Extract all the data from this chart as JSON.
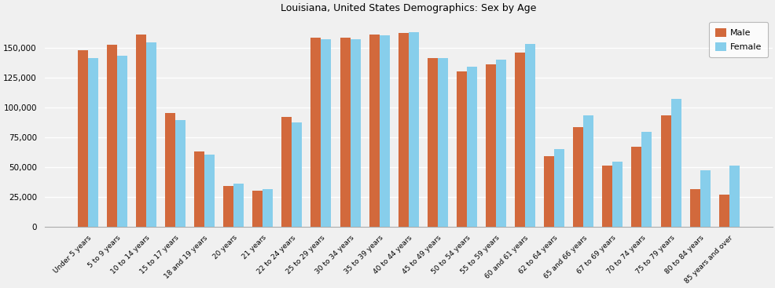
{
  "title": "Louisiana, United States Demographics: Sex by Age",
  "categories": [
    "Under 5 years",
    "5 to 9 years",
    "10 to 14 years",
    "15 to 17 years",
    "18 and 19 years",
    "20 years",
    "21 years",
    "22 to 24 years",
    "25 to 29 years",
    "30 to 34 years",
    "35 to 39 years",
    "40 to 44 years",
    "45 to 49 years",
    "50 to 54 years",
    "55 to 59 years",
    "60 and 61 years",
    "62 to 64 years",
    "65 and 66 years",
    "67 to 69 years",
    "70 to 74 years",
    "75 to 79 years",
    "80 to 84 years",
    "85 years and over"
  ],
  "male": [
    148000,
    152000,
    161000,
    95000,
    63000,
    34000,
    30000,
    92000,
    158000,
    158000,
    161000,
    162000,
    141000,
    130000,
    136000,
    146000,
    59000,
    83000,
    51000,
    67000,
    93000,
    31000,
    27000
  ],
  "female": [
    141000,
    143000,
    154000,
    89000,
    60000,
    36000,
    31000,
    87000,
    157000,
    157000,
    160000,
    163000,
    141000,
    134000,
    140000,
    153000,
    65000,
    93000,
    54000,
    79000,
    107000,
    47000,
    51000
  ],
  "male_color": "#d2693c",
  "female_color": "#87ceeb",
  "ylim": [
    0,
    175000
  ],
  "yticks": [
    0,
    25000,
    50000,
    75000,
    100000,
    125000,
    150000
  ],
  "background_color": "#f0f0f0",
  "figwidth": 9.87,
  "figheight": 3.67,
  "dpi": 100
}
